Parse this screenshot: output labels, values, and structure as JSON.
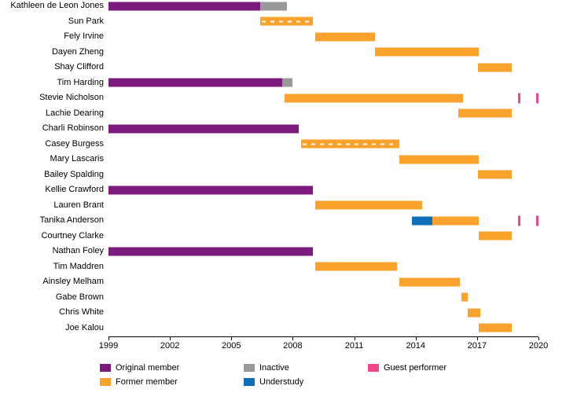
{
  "chart_data": {
    "type": "bar",
    "subtype": "gantt-timeline",
    "title": "",
    "xlabel": "",
    "ylabel": "",
    "grid": false,
    "legend_position": "bottom",
    "x_axis": {
      "min": 1999,
      "max": 2020,
      "ticks": [
        1999,
        2002,
        2005,
        2008,
        2011,
        2014,
        2017,
        2020
      ]
    },
    "colors": {
      "original": "#7d1a7d",
      "former": "#faa22b",
      "inactive": "#999999",
      "understudy": "#0e6eb8",
      "guest": "#f0478c"
    },
    "legend": [
      {
        "label": "Original member",
        "type": "original"
      },
      {
        "label": "Inactive",
        "type": "inactive"
      },
      {
        "label": "Guest performer",
        "type": "guest"
      },
      {
        "label": "Former member",
        "type": "former"
      },
      {
        "label": "Understudy",
        "type": "understudy"
      }
    ],
    "rows": [
      {
        "name": "Kathleen de Leon Jones",
        "segments": [
          {
            "type": "original",
            "start": 1999,
            "end": 2006.4
          },
          {
            "type": "inactive",
            "start": 2006.4,
            "end": 2007.7
          }
        ]
      },
      {
        "name": "Sun Park",
        "segments": [
          {
            "type": "former",
            "start": 2006.4,
            "end": 2009.0,
            "pattern": "dashed"
          }
        ]
      },
      {
        "name": "Fely Irvine",
        "segments": [
          {
            "type": "former",
            "start": 2009.1,
            "end": 2012.0
          }
        ]
      },
      {
        "name": "Dayen Zheng",
        "segments": [
          {
            "type": "former",
            "start": 2012.0,
            "end": 2017.1
          }
        ]
      },
      {
        "name": "Shay Clifford",
        "segments": [
          {
            "type": "former",
            "start": 2017.05,
            "end": 2018.7
          }
        ]
      },
      {
        "name": "Tim Harding",
        "segments": [
          {
            "type": "original",
            "start": 1999,
            "end": 2007.5
          },
          {
            "type": "inactive",
            "start": 2007.5,
            "end": 2008.0
          }
        ]
      },
      {
        "name": "Stevie Nicholson",
        "segments": [
          {
            "type": "former",
            "start": 2007.6,
            "end": 2016.3
          },
          {
            "type": "guest",
            "start": 2019.0,
            "end": 2019.12
          },
          {
            "type": "guest",
            "start": 2019.9,
            "end": 2020.0
          }
        ]
      },
      {
        "name": "Lachie Dearing",
        "segments": [
          {
            "type": "former",
            "start": 2016.1,
            "end": 2018.7
          }
        ]
      },
      {
        "name": "Charli Robinson",
        "segments": [
          {
            "type": "original",
            "start": 1999,
            "end": 2008.3
          }
        ]
      },
      {
        "name": "Casey Burgess",
        "segments": [
          {
            "type": "former",
            "start": 2008.4,
            "end": 2013.2,
            "pattern": "dashed"
          }
        ]
      },
      {
        "name": "Mary Lascaris",
        "segments": [
          {
            "type": "former",
            "start": 2013.2,
            "end": 2017.1
          }
        ]
      },
      {
        "name": "Bailey Spalding",
        "segments": [
          {
            "type": "former",
            "start": 2017.05,
            "end": 2018.7
          }
        ]
      },
      {
        "name": "Kellie Crawford",
        "segments": [
          {
            "type": "original",
            "start": 1999,
            "end": 2009.0
          }
        ]
      },
      {
        "name": "Lauren Brant",
        "segments": [
          {
            "type": "former",
            "start": 2009.1,
            "end": 2014.3
          }
        ]
      },
      {
        "name": "Tanika Anderson",
        "segments": [
          {
            "type": "understudy",
            "start": 2013.8,
            "end": 2014.8
          },
          {
            "type": "former",
            "start": 2014.8,
            "end": 2017.1
          },
          {
            "type": "guest",
            "start": 2019.0,
            "end": 2019.12
          },
          {
            "type": "guest",
            "start": 2019.9,
            "end": 2020.0
          }
        ]
      },
      {
        "name": "Courtney Clarke",
        "segments": [
          {
            "type": "former",
            "start": 2017.1,
            "end": 2018.7
          }
        ]
      },
      {
        "name": "Nathan Foley",
        "segments": [
          {
            "type": "original",
            "start": 1999,
            "end": 2009.0
          }
        ]
      },
      {
        "name": "Tim Maddren",
        "segments": [
          {
            "type": "former",
            "start": 2009.1,
            "end": 2013.1
          }
        ]
      },
      {
        "name": "Ainsley Melham",
        "segments": [
          {
            "type": "former",
            "start": 2013.2,
            "end": 2016.15
          }
        ]
      },
      {
        "name": "Gabe Brown",
        "segments": [
          {
            "type": "former",
            "start": 2016.25,
            "end": 2016.55
          }
        ]
      },
      {
        "name": "Chris White",
        "segments": [
          {
            "type": "former",
            "start": 2016.55,
            "end": 2017.15
          }
        ]
      },
      {
        "name": "Joe Kalou",
        "segments": [
          {
            "type": "former",
            "start": 2017.1,
            "end": 2018.7
          }
        ]
      }
    ]
  }
}
